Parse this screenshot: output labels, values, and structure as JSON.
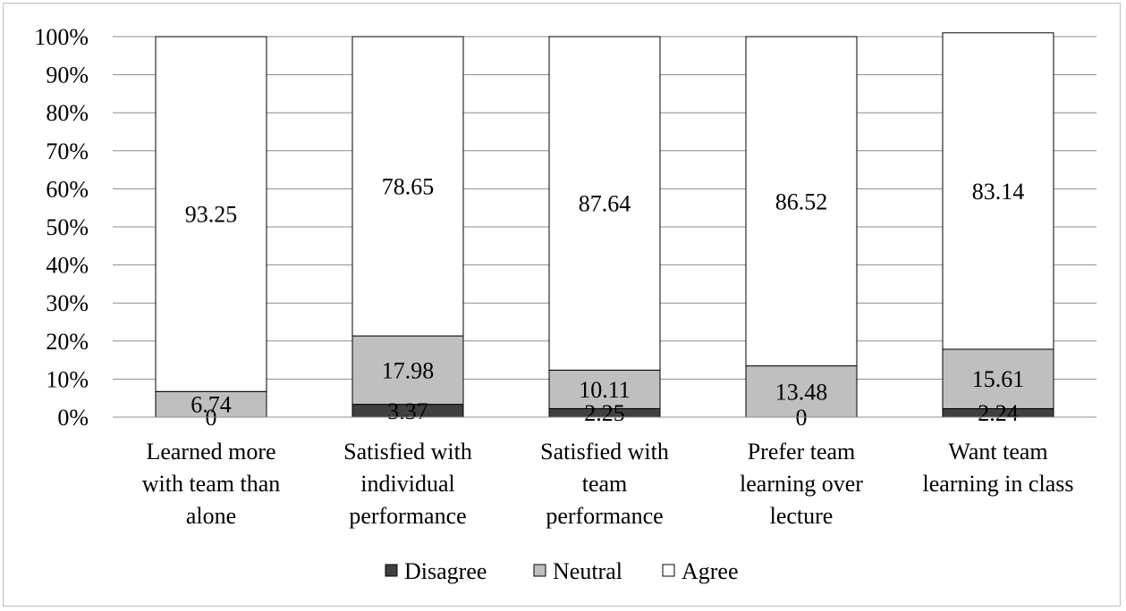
{
  "chart_data": {
    "type": "bar",
    "stacked": true,
    "percent": true,
    "categories": [
      [
        "Learned more",
        "with team than",
        "alone"
      ],
      [
        "Satisfied with",
        "individual",
        "performance"
      ],
      [
        "Satisfied with",
        "team",
        "performance"
      ],
      [
        "Prefer team",
        "learning over",
        "lecture"
      ],
      [
        "Want team",
        "learning in class"
      ]
    ],
    "series": [
      {
        "name": "Disagree",
        "color": "#404040",
        "values": [
          0,
          3.37,
          2.25,
          0,
          2.24
        ],
        "labels": [
          "0",
          "3.37",
          "2.25",
          "0",
          "2.24"
        ]
      },
      {
        "name": "Neutral",
        "color": "#bfbfbf",
        "values": [
          6.74,
          17.98,
          10.11,
          13.48,
          15.61
        ],
        "labels": [
          "6.74",
          "17.98",
          "10.11",
          "13.48",
          "15.61"
        ]
      },
      {
        "name": "Agree",
        "color": "#ffffff",
        "values": [
          93.25,
          78.65,
          87.64,
          86.52,
          83.14
        ],
        "labels": [
          "93.25",
          "78.65",
          "87.64",
          "86.52",
          "83.14"
        ]
      }
    ],
    "ylim": [
      0,
      100
    ],
    "yticks": [
      "0%",
      "10%",
      "20%",
      "30%",
      "40%",
      "50%",
      "60%",
      "70%",
      "80%",
      "90%",
      "100%"
    ],
    "grid": true,
    "legend": "bottom"
  }
}
